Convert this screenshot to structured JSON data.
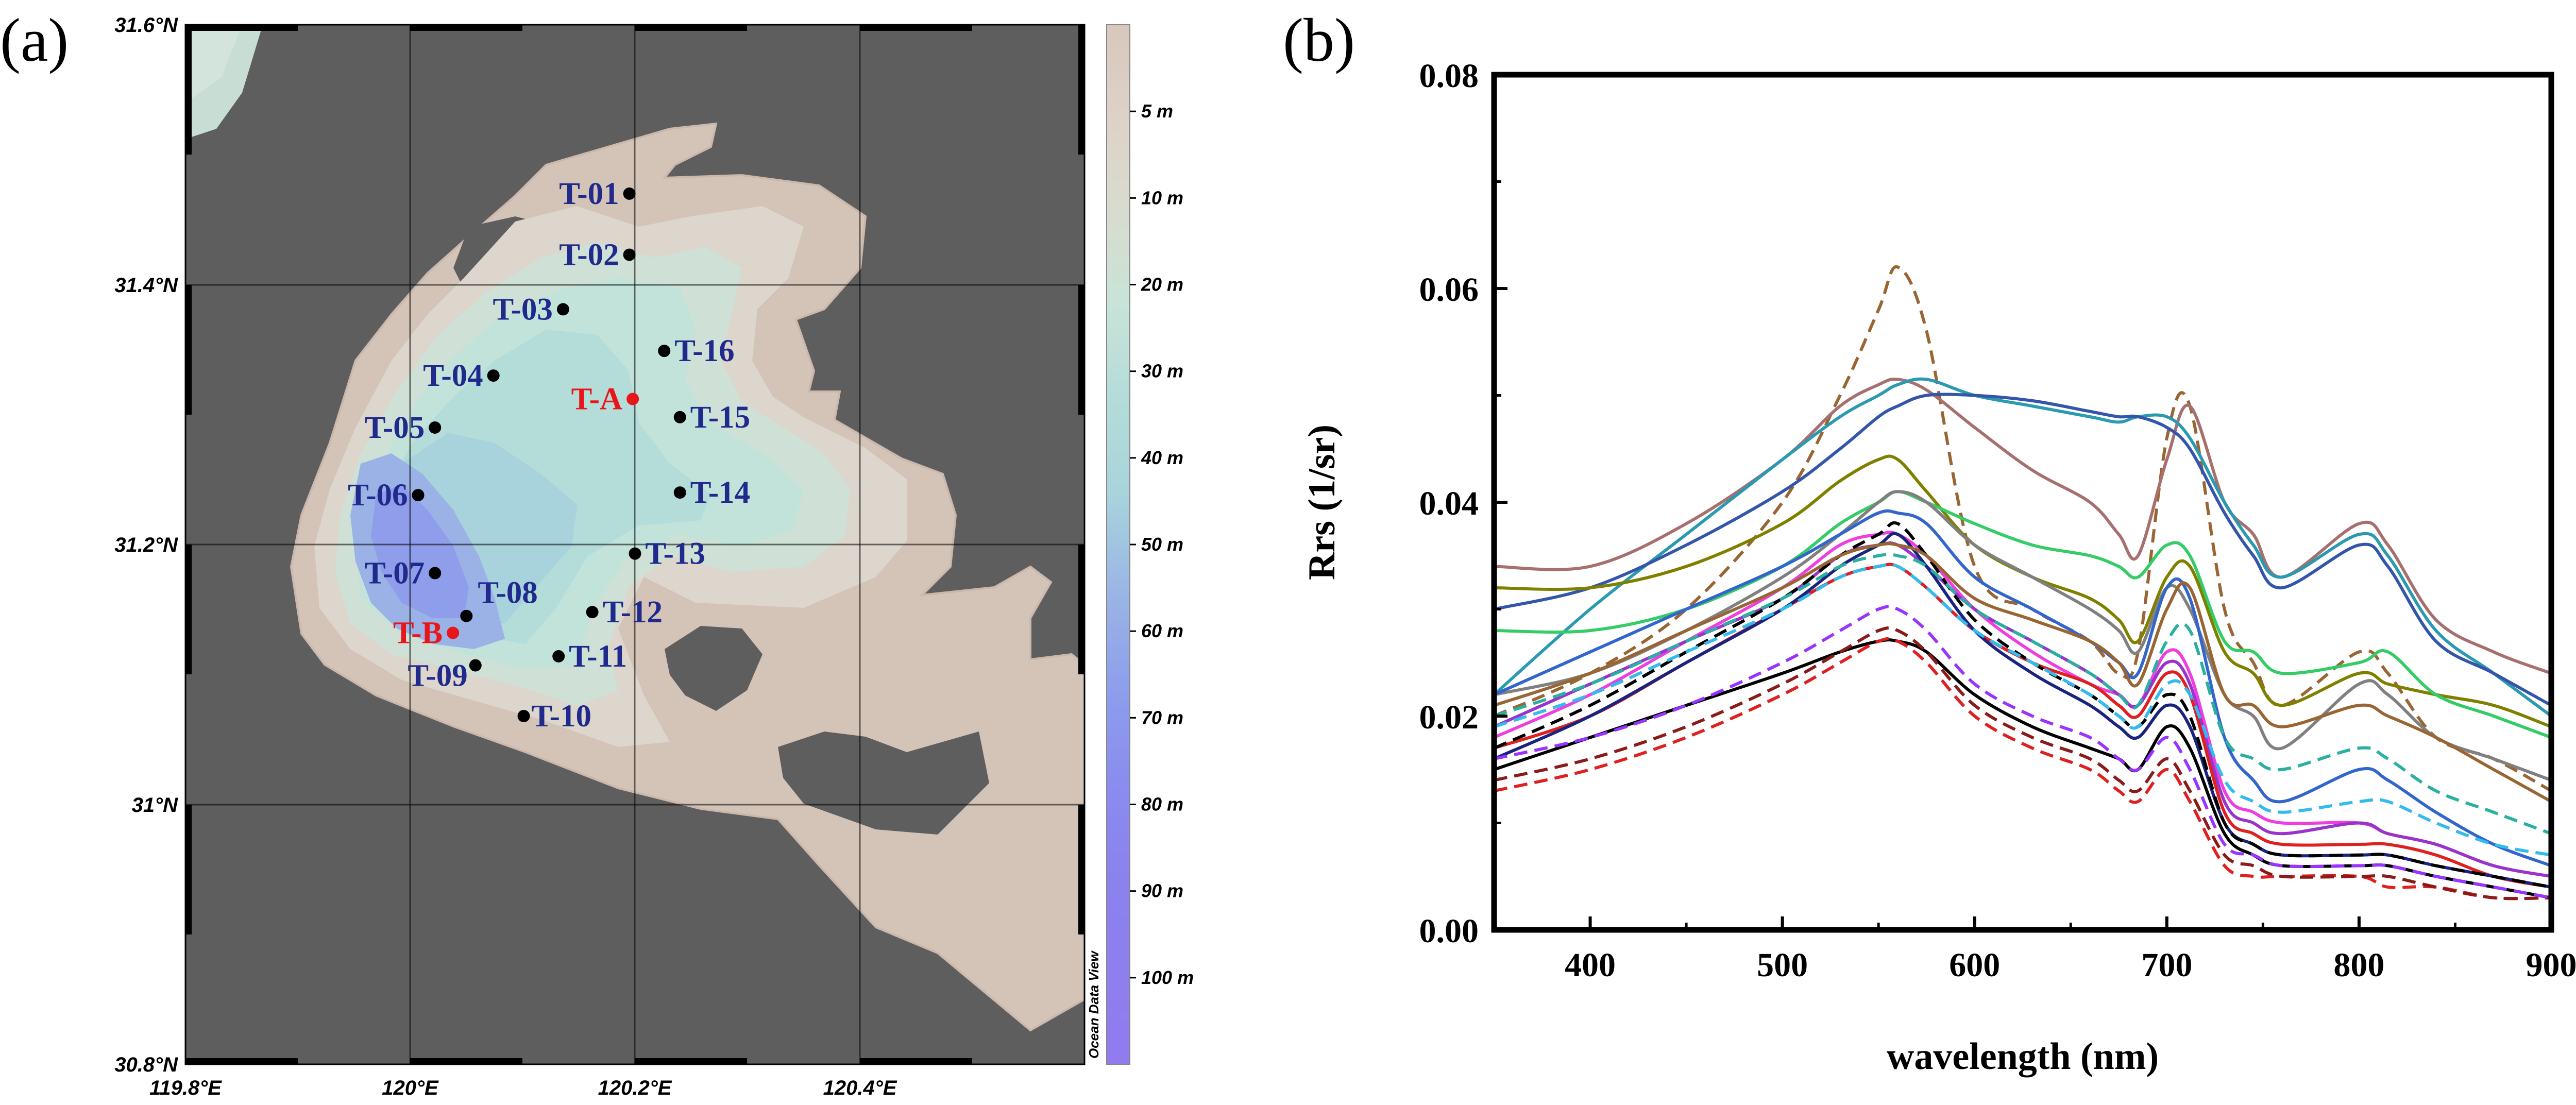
{
  "chart_data": [
    {
      "panel": "(a)",
      "type": "map",
      "lon_ticks": [
        "119.8°E",
        "120°E",
        "120.2°E",
        "120.4°E"
      ],
      "lat_ticks": [
        "31.6°N",
        "31.4°N",
        "31.2°N",
        "31°N",
        "30.8°N"
      ],
      "lon_range": [
        119.8,
        120.6
      ],
      "lat_range": [
        30.8,
        31.6
      ],
      "depth_legend": [
        "5 m",
        "10 m",
        "20 m",
        "30 m",
        "40 m",
        "50 m",
        "60 m",
        "70 m",
        "80 m",
        "90 m",
        "100 m"
      ],
      "credit": "Ocean Data View",
      "stations": [
        {
          "name": "T-01",
          "lon": 120.195,
          "lat": 31.47,
          "color": "#1f2a8c"
        },
        {
          "name": "T-02",
          "lon": 120.195,
          "lat": 31.423,
          "color": "#1f2a8c"
        },
        {
          "name": "T-03",
          "lon": 120.136,
          "lat": 31.381,
          "color": "#1f2a8c"
        },
        {
          "name": "T-04",
          "lon": 120.074,
          "lat": 31.33,
          "color": "#1f2a8c"
        },
        {
          "name": "T-05",
          "lon": 120.022,
          "lat": 31.29,
          "color": "#1f2a8c"
        },
        {
          "name": "T-06",
          "lon": 120.007,
          "lat": 31.238,
          "color": "#1f2a8c"
        },
        {
          "name": "T-07",
          "lon": 120.022,
          "lat": 31.178,
          "color": "#1f2a8c"
        },
        {
          "name": "T-08",
          "lon": 120.05,
          "lat": 31.145,
          "color": "#1f2a8c"
        },
        {
          "name": "T-09",
          "lon": 120.058,
          "lat": 31.107,
          "color": "#1f2a8c"
        },
        {
          "name": "T-10",
          "lon": 120.101,
          "lat": 31.068,
          "color": "#1f2a8c"
        },
        {
          "name": "T-11",
          "lon": 120.132,
          "lat": 31.114,
          "color": "#1f2a8c"
        },
        {
          "name": "T-12",
          "lon": 120.162,
          "lat": 31.148,
          "color": "#1f2a8c"
        },
        {
          "name": "T-13",
          "lon": 120.2,
          "lat": 31.193,
          "color": "#1f2a8c"
        },
        {
          "name": "T-14",
          "lon": 120.24,
          "lat": 31.24,
          "color": "#1f2a8c"
        },
        {
          "name": "T-15",
          "lon": 120.24,
          "lat": 31.298,
          "color": "#1f2a8c"
        },
        {
          "name": "T-16",
          "lon": 120.226,
          "lat": 31.349,
          "color": "#1f2a8c"
        },
        {
          "name": "T-A",
          "lon": 120.198,
          "lat": 31.312,
          "color": "#e8161b"
        },
        {
          "name": "T-B",
          "lon": 120.038,
          "lat": 31.132,
          "color": "#e8161b"
        }
      ]
    },
    {
      "panel": "(b)",
      "type": "line",
      "xlabel": "wavelength (nm)",
      "ylabel": "Rrs (1/sr)",
      "xlim": [
        350,
        900
      ],
      "ylim": [
        0,
        0.08
      ],
      "xticks": [
        "400",
        "500",
        "600",
        "700",
        "800",
        "900"
      ],
      "yticks": [
        "0.00",
        "0.02",
        "0.04",
        "0.06",
        "0.08"
      ],
      "wavelengths": [
        350,
        400,
        450,
        500,
        530,
        550,
        560,
        575,
        600,
        630,
        660,
        675,
        685,
        700,
        712,
        730,
        745,
        760,
        800,
        815,
        840,
        870,
        900
      ],
      "series": [
        {
          "color": "#996633",
          "dash": true,
          "values": [
            0.02,
            0.024,
            0.03,
            0.04,
            0.05,
            0.058,
            0.062,
            0.056,
            0.034,
            0.03,
            0.027,
            0.024,
            0.026,
            0.046,
            0.049,
            0.03,
            0.025,
            0.021,
            0.026,
            0.024,
            0.018,
            0.016,
            0.013
          ]
        },
        {
          "color": "#a86f6f",
          "dash": false,
          "values": [
            0.034,
            0.034,
            0.038,
            0.044,
            0.049,
            0.051,
            0.0515,
            0.0505,
            0.047,
            0.043,
            0.04,
            0.037,
            0.035,
            0.044,
            0.049,
            0.04,
            0.037,
            0.033,
            0.038,
            0.036,
            0.029,
            0.026,
            0.024
          ]
        },
        {
          "color": "#2a9ab0",
          "dash": false,
          "values": [
            0.022,
            0.03,
            0.037,
            0.044,
            0.048,
            0.05,
            0.051,
            0.0515,
            0.05,
            0.049,
            0.048,
            0.0475,
            0.048,
            0.048,
            0.046,
            0.04,
            0.036,
            0.033,
            0.037,
            0.035,
            0.028,
            0.024,
            0.02
          ]
        },
        {
          "color": "#3355aa",
          "dash": false,
          "values": [
            0.03,
            0.032,
            0.036,
            0.041,
            0.045,
            0.048,
            0.049,
            0.05,
            0.05,
            0.0495,
            0.0485,
            0.048,
            0.048,
            0.047,
            0.045,
            0.039,
            0.035,
            0.032,
            0.036,
            0.034,
            0.027,
            0.024,
            0.021
          ]
        },
        {
          "color": "#808000",
          "dash": false,
          "values": [
            0.032,
            0.032,
            0.034,
            0.038,
            0.042,
            0.044,
            0.044,
            0.041,
            0.036,
            0.033,
            0.031,
            0.029,
            0.027,
            0.033,
            0.034,
            0.026,
            0.024,
            0.021,
            0.024,
            0.023,
            0.022,
            0.021,
            0.019
          ]
        },
        {
          "color": "#33cc66",
          "dash": false,
          "values": [
            0.028,
            0.028,
            0.03,
            0.034,
            0.038,
            0.04,
            0.041,
            0.04,
            0.038,
            0.036,
            0.035,
            0.034,
            0.033,
            0.036,
            0.035,
            0.027,
            0.026,
            0.024,
            0.025,
            0.026,
            0.022,
            0.02,
            0.018
          ]
        },
        {
          "color": "#808080",
          "dash": false,
          "values": [
            0.022,
            0.024,
            0.028,
            0.033,
            0.037,
            0.04,
            0.041,
            0.04,
            0.036,
            0.033,
            0.03,
            0.028,
            0.026,
            0.032,
            0.03,
            0.022,
            0.02,
            0.017,
            0.023,
            0.022,
            0.018,
            0.016,
            0.014
          ]
        },
        {
          "color": "#3366cc",
          "dash": false,
          "values": [
            0.022,
            0.026,
            0.03,
            0.034,
            0.037,
            0.039,
            0.039,
            0.038,
            0.033,
            0.03,
            0.027,
            0.025,
            0.024,
            0.032,
            0.031,
            0.018,
            0.014,
            0.012,
            0.015,
            0.014,
            0.011,
            0.008,
            0.006
          ]
        },
        {
          "color": "#ee3ee0",
          "dash": false,
          "values": [
            0.018,
            0.022,
            0.027,
            0.032,
            0.036,
            0.037,
            0.037,
            0.035,
            0.03,
            0.026,
            0.023,
            0.022,
            0.021,
            0.026,
            0.024,
            0.013,
            0.011,
            0.01,
            0.01,
            0.009,
            0.008,
            0.006,
            0.005
          ]
        },
        {
          "color": "#9933cc",
          "dash": false,
          "values": [
            0.019,
            0.023,
            0.027,
            0.031,
            0.035,
            0.036,
            0.036,
            0.034,
            0.03,
            0.027,
            0.024,
            0.022,
            0.021,
            0.025,
            0.023,
            0.012,
            0.01,
            0.009,
            0.01,
            0.009,
            0.008,
            0.006,
            0.005
          ]
        },
        {
          "color": "#e02020",
          "dash": false,
          "values": [
            0.017,
            0.02,
            0.025,
            0.03,
            0.033,
            0.034,
            0.034,
            0.032,
            0.028,
            0.025,
            0.023,
            0.021,
            0.02,
            0.024,
            0.022,
            0.011,
            0.009,
            0.008,
            0.008,
            0.008,
            0.007,
            0.005,
            0.004
          ]
        },
        {
          "color": "#1a237e",
          "dash": false,
          "values": [
            0.016,
            0.02,
            0.025,
            0.03,
            0.034,
            0.036,
            0.037,
            0.034,
            0.028,
            0.024,
            0.021,
            0.019,
            0.018,
            0.021,
            0.019,
            0.01,
            0.008,
            0.007,
            0.007,
            0.007,
            0.006,
            0.005,
            0.004
          ]
        },
        {
          "color": "#000000",
          "dash": false,
          "values": [
            0.015,
            0.018,
            0.021,
            0.024,
            0.026,
            0.027,
            0.027,
            0.026,
            0.022,
            0.019,
            0.017,
            0.016,
            0.015,
            0.019,
            0.017,
            0.009,
            0.007,
            0.006,
            0.006,
            0.006,
            0.005,
            0.004,
            0.003
          ]
        },
        {
          "color": "#000000",
          "dash": true,
          "values": [
            0.017,
            0.021,
            0.026,
            0.031,
            0.035,
            0.037,
            0.038,
            0.035,
            0.029,
            0.025,
            0.022,
            0.02,
            0.019,
            0.022,
            0.02,
            0.01,
            0.008,
            0.007,
            0.007,
            0.007,
            0.006,
            0.005,
            0.004
          ]
        },
        {
          "color": "#33bbee",
          "dash": true,
          "values": [
            0.019,
            0.022,
            0.026,
            0.03,
            0.033,
            0.034,
            0.034,
            0.032,
            0.028,
            0.025,
            0.022,
            0.02,
            0.019,
            0.023,
            0.022,
            0.014,
            0.012,
            0.011,
            0.012,
            0.012,
            0.01,
            0.008,
            0.007
          ]
        },
        {
          "color": "#e02020",
          "dash": true,
          "values": [
            0.013,
            0.015,
            0.018,
            0.022,
            0.025,
            0.027,
            0.027,
            0.025,
            0.02,
            0.017,
            0.015,
            0.013,
            0.012,
            0.015,
            0.012,
            0.006,
            0.005,
            0.005,
            0.005,
            0.004,
            0.004,
            0.003,
            0.003
          ]
        },
        {
          "color": "#8b1a1a",
          "dash": true,
          "values": [
            0.014,
            0.016,
            0.019,
            0.023,
            0.026,
            0.028,
            0.028,
            0.026,
            0.021,
            0.018,
            0.016,
            0.014,
            0.013,
            0.016,
            0.013,
            0.007,
            0.006,
            0.005,
            0.005,
            0.005,
            0.004,
            0.003,
            0.003
          ]
        },
        {
          "color": "#9933ff",
          "dash": true,
          "values": [
            0.016,
            0.018,
            0.021,
            0.025,
            0.028,
            0.03,
            0.03,
            0.028,
            0.023,
            0.02,
            0.018,
            0.016,
            0.015,
            0.018,
            0.015,
            0.008,
            0.007,
            0.006,
            0.006,
            0.006,
            0.005,
            0.004,
            0.003
          ]
        },
        {
          "color": "#996633",
          "dash": false,
          "values": [
            0.021,
            0.024,
            0.028,
            0.032,
            0.035,
            0.036,
            0.036,
            0.035,
            0.031,
            0.029,
            0.027,
            0.025,
            0.023,
            0.03,
            0.032,
            0.022,
            0.021,
            0.019,
            0.021,
            0.02,
            0.018,
            0.015,
            0.012
          ]
        },
        {
          "color": "#2ab0a0",
          "dash": true,
          "values": [
            0.02,
            0.023,
            0.027,
            0.031,
            0.034,
            0.035,
            0.035,
            0.034,
            0.03,
            0.027,
            0.024,
            0.022,
            0.021,
            0.027,
            0.028,
            0.018,
            0.016,
            0.015,
            0.017,
            0.016,
            0.013,
            0.011,
            0.009
          ]
        }
      ]
    }
  ]
}
